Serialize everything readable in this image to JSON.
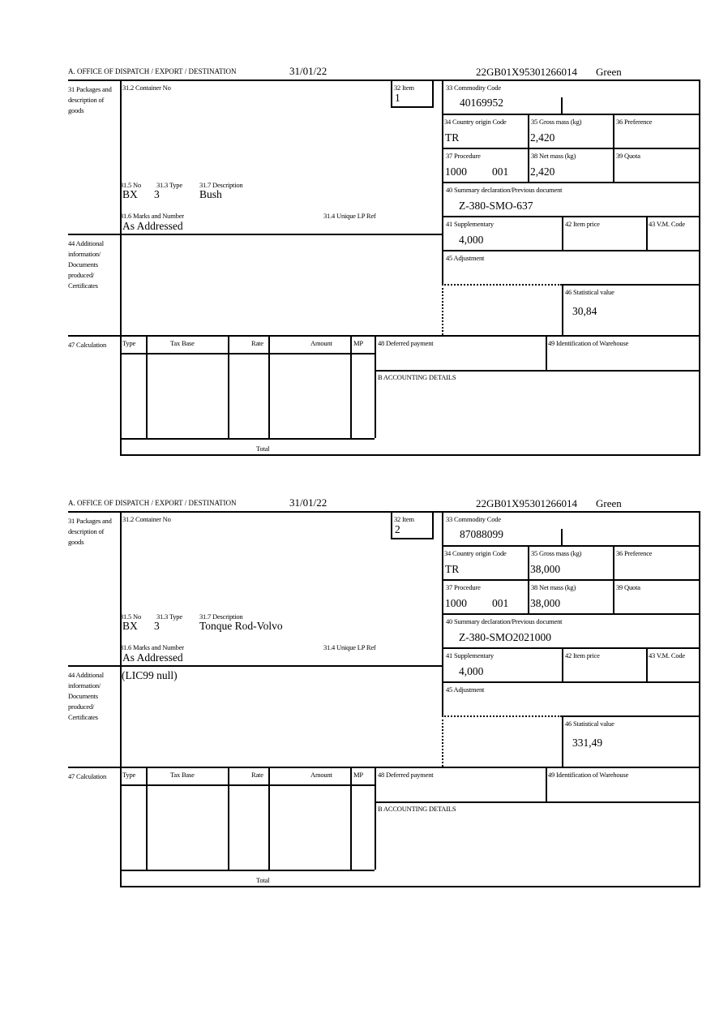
{
  "labels": {
    "office": "A.  OFFICE OF DISPATCH / EXPORT / DESTINATION",
    "packages": "31 Packages and description of goods",
    "container_no": "31.2 Container No",
    "item": "32 Item",
    "commodity_code": "33 Commodity Code",
    "country_origin": "34 Country origin Code",
    "gross_mass": "35 Gross mass (kg)",
    "preference": "36 Preference",
    "procedure": "37 Procedure",
    "net_mass": "38 Net mass (kg)",
    "quota": "39 Quota",
    "summary_decl": "40 Summary declaration/Previous document",
    "supplementary": "41 Supplementary",
    "item_price": "42 Item price",
    "vm_code": "43 V.M. Code",
    "adjustment": "45 Adjustment",
    "statistical_value": "46 Statistical value",
    "no": "31.5 No",
    "type": "31.3 Type",
    "description": "31.7 Description",
    "marks": "31.6 Marks and Number",
    "unique_ref": "31.4 Unique LP Ref",
    "additional_info": "44 Additional information/ Documents produced/ Certificates",
    "calculation": "47 Calculation",
    "calc_type": "Type",
    "calc_tax_base": "Tax Base",
    "calc_rate": "Rate",
    "calc_amount": "Amount",
    "calc_mp": "MP",
    "deferred_payment": "48 Deferred payment",
    "warehouse": "49 Identification of Warehouse",
    "accounting": "B ACCOUNTING DETAILS",
    "total": "Total"
  },
  "items": [
    {
      "date": "31/01/22",
      "reference": "22GB01X95301266014",
      "route": "Green",
      "item_no": "1",
      "commodity_code": "40169952",
      "country_origin": "TR",
      "gross_mass": "2,420",
      "procedure": "1000",
      "procedure_add": "001",
      "net_mass": "2,420",
      "summary_decl": "Z-380-SMO-637",
      "supplementary": "4,000",
      "statistical_value": "30,84",
      "pkg_kind": "BX",
      "pkg_count": "3",
      "description": "Bush",
      "marks": "As Addressed",
      "additional_info": ""
    },
    {
      "date": "31/01/22",
      "reference": "22GB01X95301266014",
      "route": "Green",
      "item_no": "2",
      "commodity_code": "87088099",
      "country_origin": "TR",
      "gross_mass": "38,000",
      "procedure": "1000",
      "procedure_add": "001",
      "net_mass": "38,000",
      "summary_decl": "Z-380-SMO2021000",
      "supplementary": "4,000",
      "statistical_value": "331,49",
      "pkg_kind": "BX",
      "pkg_count": "3",
      "description": "Tonque Rod-Volvo",
      "marks": "As Addressed",
      "additional_info": "(LIC99 null)"
    }
  ]
}
